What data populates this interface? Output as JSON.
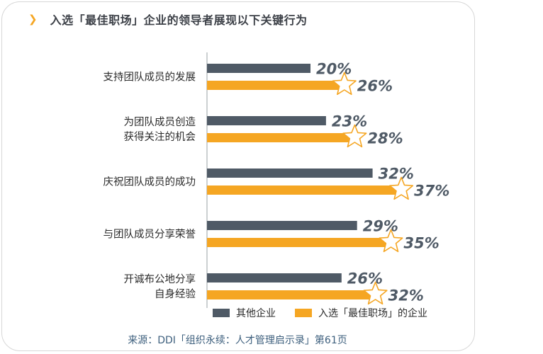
{
  "title": "入选「最佳职场」企业的领导者展现以下关键行为",
  "title_icon": "chevron-right-icon",
  "source": "来源：DDI「组织永续：人才管理启示录」第61页",
  "colors": {
    "other": "#4f5a66",
    "best": "#f5a623",
    "axis": "#9aa0a6"
  },
  "chart_data": {
    "type": "bar",
    "orientation": "horizontal",
    "categories": [
      [
        "支持团队成员的发展"
      ],
      [
        "为团队成员创造",
        "获得关注的机会"
      ],
      [
        "庆祝团队成员的成功"
      ],
      [
        "与团队成员分享荣誉"
      ],
      [
        "开诚布公地分享",
        "自身经验"
      ]
    ],
    "series": [
      {
        "name": "其他企业",
        "values": [
          20,
          23,
          32,
          29,
          26
        ]
      },
      {
        "name": "入选「最佳职场」的企业",
        "values": [
          26,
          28,
          37,
          35,
          32
        ]
      }
    ],
    "value_suffix": "%",
    "xlim": [
      0,
      40
    ],
    "legend": "bottom",
    "highlight_marker": "star-icon"
  }
}
